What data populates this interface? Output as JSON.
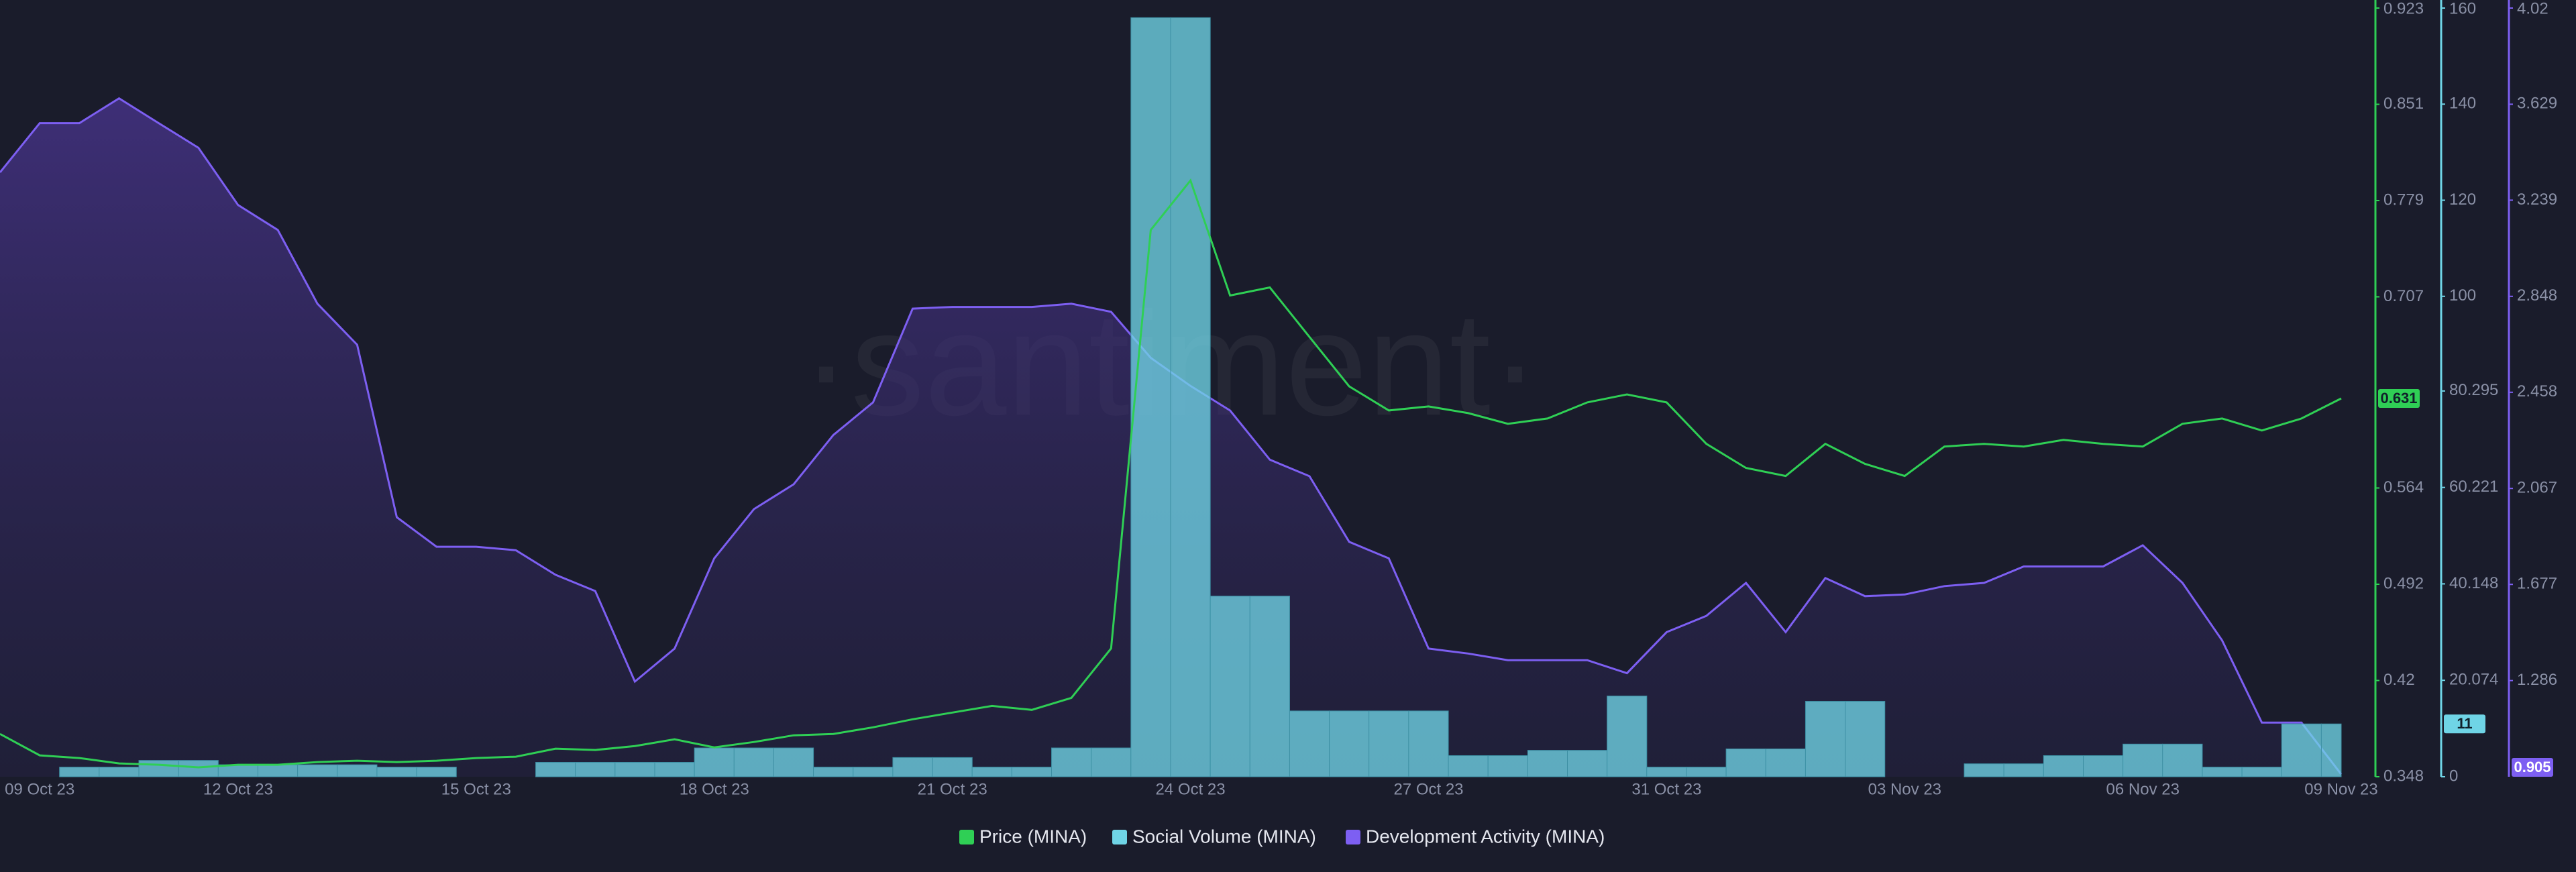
{
  "chart_data": {
    "type": "combo",
    "watermark": "·santiment·",
    "categories": [
      null,
      "09 Oct 23",
      null,
      null,
      null,
      null,
      "12 Oct 23",
      null,
      null,
      null,
      null,
      null,
      "15 Oct 23",
      null,
      null,
      null,
      null,
      null,
      "18 Oct 23",
      null,
      null,
      null,
      null,
      null,
      "21 Oct 23",
      null,
      null,
      null,
      null,
      null,
      "24 Oct 23",
      null,
      null,
      null,
      null,
      null,
      "27 Oct 23",
      null,
      null,
      null,
      null,
      null,
      "31 Oct 23",
      null,
      null,
      null,
      null,
      null,
      "03 Nov 23",
      null,
      null,
      null,
      null,
      null,
      "06 Nov 23",
      null,
      null,
      null,
      null,
      "09 Nov 23"
    ],
    "ylim": [
      0.348,
      0.923
    ],
    "yticks": [
      0.348,
      0.42,
      0.492,
      0.564,
      0.707,
      0.779,
      0.851,
      0.923
    ],
    "y2lim": [
      0,
      160
    ],
    "y2ticks": [
      0,
      20.074,
      40.148,
      60.221,
      80.295,
      100,
      120,
      140,
      160
    ],
    "y3lim": [
      0.895,
      4.02
    ],
    "y3ticks": [
      1.286,
      1.677,
      2.067,
      2.458,
      2.848,
      3.239,
      3.629,
      4.02
    ],
    "series": [
      {
        "name": "Development Activity (MINA)",
        "type": "area",
        "axis": "y3",
        "color": "#7d5ff2",
        "last_label": 0.905,
        "values": [
          3.352,
          3.552,
          3.552,
          3.653,
          3.552,
          3.452,
          3.219,
          3.118,
          2.818,
          2.651,
          1.95,
          1.83,
          1.83,
          1.816,
          1.716,
          1.65,
          1.282,
          1.416,
          1.783,
          1.983,
          2.084,
          2.284,
          2.417,
          2.798,
          2.805,
          2.805,
          2.805,
          2.818,
          2.785,
          2.598,
          2.484,
          2.384,
          2.184,
          2.117,
          1.85,
          1.783,
          1.416,
          1.396,
          1.369,
          1.369,
          1.369,
          1.316,
          1.483,
          1.549,
          1.683,
          1.483,
          1.703,
          1.629,
          1.636,
          1.67,
          1.683,
          1.75,
          1.75,
          1.75,
          1.836,
          1.683,
          1.449,
          1.115,
          1.115,
          0.905
        ]
      },
      {
        "name": "Social Volume (MINA)",
        "type": "bar",
        "axis": "y2",
        "color": "#6fd4e6",
        "last_label": 11,
        "values": [
          0,
          0,
          2,
          2,
          3.4,
          3.4,
          2.5,
          2.5,
          2.5,
          2.5,
          2,
          2,
          0,
          0,
          3,
          3,
          3,
          3,
          6,
          6,
          6,
          2,
          2,
          4,
          4,
          2,
          2,
          6,
          6,
          158,
          158,
          37.6,
          37.6,
          13.7,
          13.7,
          13.7,
          13.7,
          4.4,
          4.4,
          5.5,
          5.5,
          16.8,
          2,
          2,
          5.8,
          5.8,
          15.7,
          15.7,
          0,
          0,
          2.7,
          2.7,
          4.4,
          4.4,
          6.8,
          6.8,
          2,
          2,
          11,
          11
        ]
      },
      {
        "name": "Price (MINA)",
        "type": "line",
        "axis": "y",
        "color": "#2fcf55",
        "last_label": 0.631,
        "values": [
          0.38,
          0.364,
          0.362,
          0.358,
          0.357,
          0.355,
          0.357,
          0.357,
          0.359,
          0.36,
          0.359,
          0.36,
          0.362,
          0.363,
          0.369,
          0.368,
          0.371,
          0.376,
          0.37,
          0.374,
          0.379,
          0.38,
          0.385,
          0.391,
          0.396,
          0.401,
          0.398,
          0.407,
          0.444,
          0.757,
          0.794,
          0.708,
          0.714,
          0.677,
          0.64,
          0.622,
          0.625,
          0.62,
          0.612,
          0.616,
          0.628,
          0.634,
          0.628,
          0.597,
          0.579,
          0.573,
          0.597,
          0.582,
          0.573,
          0.595,
          0.597,
          0.595,
          0.6,
          0.597,
          0.595,
          0.612,
          0.616,
          0.607,
          0.616,
          0.631
        ]
      }
    ]
  }
}
